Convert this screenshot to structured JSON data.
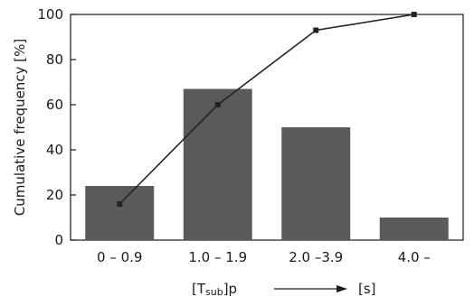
{
  "chart_data": {
    "type": "bar",
    "categories": [
      "0 – 0.9",
      "1.0 – 1.9",
      "2.0 –3.9",
      "4.0 –"
    ],
    "series": [
      {
        "type": "bar",
        "values": [
          24,
          67,
          50,
          10
        ]
      },
      {
        "type": "line",
        "values": [
          16,
          60,
          93,
          100
        ]
      }
    ],
    "title": "",
    "ylabel": "Cumulative frequency [%]",
    "xlabel": {
      "prefix": "[T",
      "sub": "sub",
      "suffix": "]p",
      "unit": "[s]"
    },
    "ylim": [
      0,
      100
    ],
    "yticks": [
      0,
      20,
      40,
      60,
      80,
      100
    ],
    "grid": false,
    "legend": "none",
    "colors": {
      "bar": "#5a5a5a",
      "line": "#222222",
      "axis": "#1a1a1a"
    }
  }
}
